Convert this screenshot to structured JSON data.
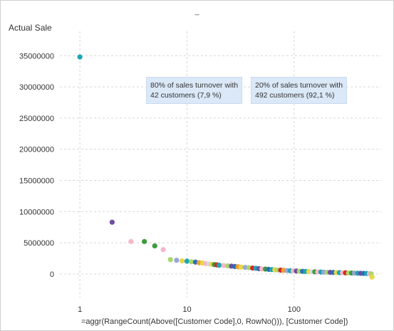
{
  "window": {
    "title": "_"
  },
  "annotations": [
    {
      "line1": "80% of sales turnover with",
      "line2": "42 customers (7,9 %)"
    },
    {
      "line1": "20% of sales turnover with",
      "line2": "492 customers (92,1 %)"
    }
  ],
  "chart_data": {
    "type": "scatter",
    "title": "",
    "ylabel": "Actual Sale",
    "xlabel": "=aggr(RangeCount(Above([Customer Code],0, RowNo())), [Customer Code])",
    "x_scale": "log",
    "xlim": [
      0.65,
      650
    ],
    "ylim": [
      -1500000,
      38000000
    ],
    "x_ticks": [
      1,
      10,
      100
    ],
    "x_tick_labels": [
      "1",
      "10",
      "100"
    ],
    "y_ticks": [
      0,
      5000000,
      10000000,
      15000000,
      20000000,
      25000000,
      30000000,
      35000000
    ],
    "y_tick_labels": [
      "0",
      "5000000",
      "10000000",
      "15000000",
      "20000000",
      "25000000",
      "30000000",
      "35000000"
    ],
    "grid": true,
    "points": [
      {
        "x": 1,
        "y": 34800000,
        "color": "#1aa6b7"
      },
      {
        "x": 2,
        "y": 8300000,
        "color": "#6b4fa0"
      },
      {
        "x": 3,
        "y": 5200000,
        "color": "#f4b8c8"
      },
      {
        "x": 4,
        "y": 5200000,
        "color": "#3e9a3e"
      },
      {
        "x": 5,
        "y": 4500000,
        "color": "#3e9a3e"
      },
      {
        "x": 6,
        "y": 3900000,
        "color": "#f4b8c8"
      },
      {
        "x": 7,
        "y": 2300000,
        "color": "#a8d86a"
      },
      {
        "x": 8,
        "y": 2200000,
        "color": "#9aa4d8"
      },
      {
        "x": 9,
        "y": 2100000,
        "color": "#e6d84a"
      },
      {
        "x": 10,
        "y": 2050000,
        "color": "#1aa6b7"
      },
      {
        "x": 11,
        "y": 1950000,
        "color": "#a8d86a"
      },
      {
        "x": 12,
        "y": 1900000,
        "color": "#2d6db5"
      },
      {
        "x": 13,
        "y": 1800000,
        "color": "#f0a030"
      },
      {
        "x": 14,
        "y": 1750000,
        "color": "#e6d84a"
      },
      {
        "x": 15,
        "y": 1650000,
        "color": "#f4b8c8"
      },
      {
        "x": 16,
        "y": 1600000,
        "color": "#d9d9d9"
      },
      {
        "x": 17,
        "y": 1550000,
        "color": "#e6d84a"
      },
      {
        "x": 18,
        "y": 1500000,
        "color": "#3e9a3e"
      },
      {
        "x": 19,
        "y": 1450000,
        "color": "#d62728"
      },
      {
        "x": 20,
        "y": 1400000,
        "color": "#1aa6b7"
      },
      {
        "x": 22,
        "y": 1350000,
        "color": "#f4b8c8"
      },
      {
        "x": 24,
        "y": 1300000,
        "color": "#a8d86a"
      },
      {
        "x": 26,
        "y": 1250000,
        "color": "#6b4fa0"
      },
      {
        "x": 28,
        "y": 1200000,
        "color": "#2d6db5"
      },
      {
        "x": 30,
        "y": 1150000,
        "color": "#f0a030"
      },
      {
        "x": 32,
        "y": 1100000,
        "color": "#e6d84a"
      },
      {
        "x": 35,
        "y": 1050000,
        "color": "#9aa4d8"
      },
      {
        "x": 38,
        "y": 1000000,
        "color": "#a8d86a"
      },
      {
        "x": 41,
        "y": 950000,
        "color": "#d62728"
      },
      {
        "x": 44,
        "y": 900000,
        "color": "#1aa6b7"
      },
      {
        "x": 47,
        "y": 850000,
        "color": "#6b4fa0"
      },
      {
        "x": 50,
        "y": 820000,
        "color": "#f4b8c8"
      },
      {
        "x": 54,
        "y": 780000,
        "color": "#3e9a3e"
      },
      {
        "x": 58,
        "y": 740000,
        "color": "#2d6db5"
      },
      {
        "x": 62,
        "y": 700000,
        "color": "#1aa6b7"
      },
      {
        "x": 66,
        "y": 670000,
        "color": "#e6d84a"
      },
      {
        "x": 70,
        "y": 640000,
        "color": "#a8d86a"
      },
      {
        "x": 75,
        "y": 610000,
        "color": "#d62728"
      },
      {
        "x": 80,
        "y": 580000,
        "color": "#f0a030"
      },
      {
        "x": 86,
        "y": 550000,
        "color": "#9aa4d8"
      },
      {
        "x": 92,
        "y": 520000,
        "color": "#1aa6b7"
      },
      {
        "x": 98,
        "y": 500000,
        "color": "#f4b8c8"
      },
      {
        "x": 105,
        "y": 470000,
        "color": "#6b4fa0"
      },
      {
        "x": 112,
        "y": 450000,
        "color": "#a8d86a"
      },
      {
        "x": 120,
        "y": 420000,
        "color": "#2d6db5"
      },
      {
        "x": 128,
        "y": 400000,
        "color": "#1aa6b7"
      },
      {
        "x": 137,
        "y": 380000,
        "color": "#e6d84a"
      },
      {
        "x": 146,
        "y": 360000,
        "color": "#d9d9d9"
      },
      {
        "x": 156,
        "y": 340000,
        "color": "#3e9a3e"
      },
      {
        "x": 166,
        "y": 320000,
        "color": "#f4b8c8"
      },
      {
        "x": 178,
        "y": 300000,
        "color": "#1aa6b7"
      },
      {
        "x": 190,
        "y": 285000,
        "color": "#9aa4d8"
      },
      {
        "x": 203,
        "y": 270000,
        "color": "#a8d86a"
      },
      {
        "x": 217,
        "y": 255000,
        "color": "#6b4fa0"
      },
      {
        "x": 232,
        "y": 240000,
        "color": "#2d6db5"
      },
      {
        "x": 248,
        "y": 225000,
        "color": "#e6d84a"
      },
      {
        "x": 265,
        "y": 210000,
        "color": "#1aa6b7"
      },
      {
        "x": 283,
        "y": 195000,
        "color": "#f4b8c8"
      },
      {
        "x": 302,
        "y": 180000,
        "color": "#d62728"
      },
      {
        "x": 322,
        "y": 165000,
        "color": "#a8d86a"
      },
      {
        "x": 344,
        "y": 150000,
        "color": "#3e9a3e"
      },
      {
        "x": 367,
        "y": 135000,
        "color": "#9aa4d8"
      },
      {
        "x": 392,
        "y": 120000,
        "color": "#1aa6b7"
      },
      {
        "x": 418,
        "y": 105000,
        "color": "#6b4fa0"
      },
      {
        "x": 446,
        "y": 90000,
        "color": "#2d6db5"
      },
      {
        "x": 476,
        "y": 70000,
        "color": "#1aa6b7"
      },
      {
        "x": 505,
        "y": 50000,
        "color": "#f4b8c8"
      },
      {
        "x": 525,
        "y": 20000,
        "color": "#a8d86a"
      },
      {
        "x": 534,
        "y": -500000,
        "color": "#e6d84a"
      }
    ]
  }
}
